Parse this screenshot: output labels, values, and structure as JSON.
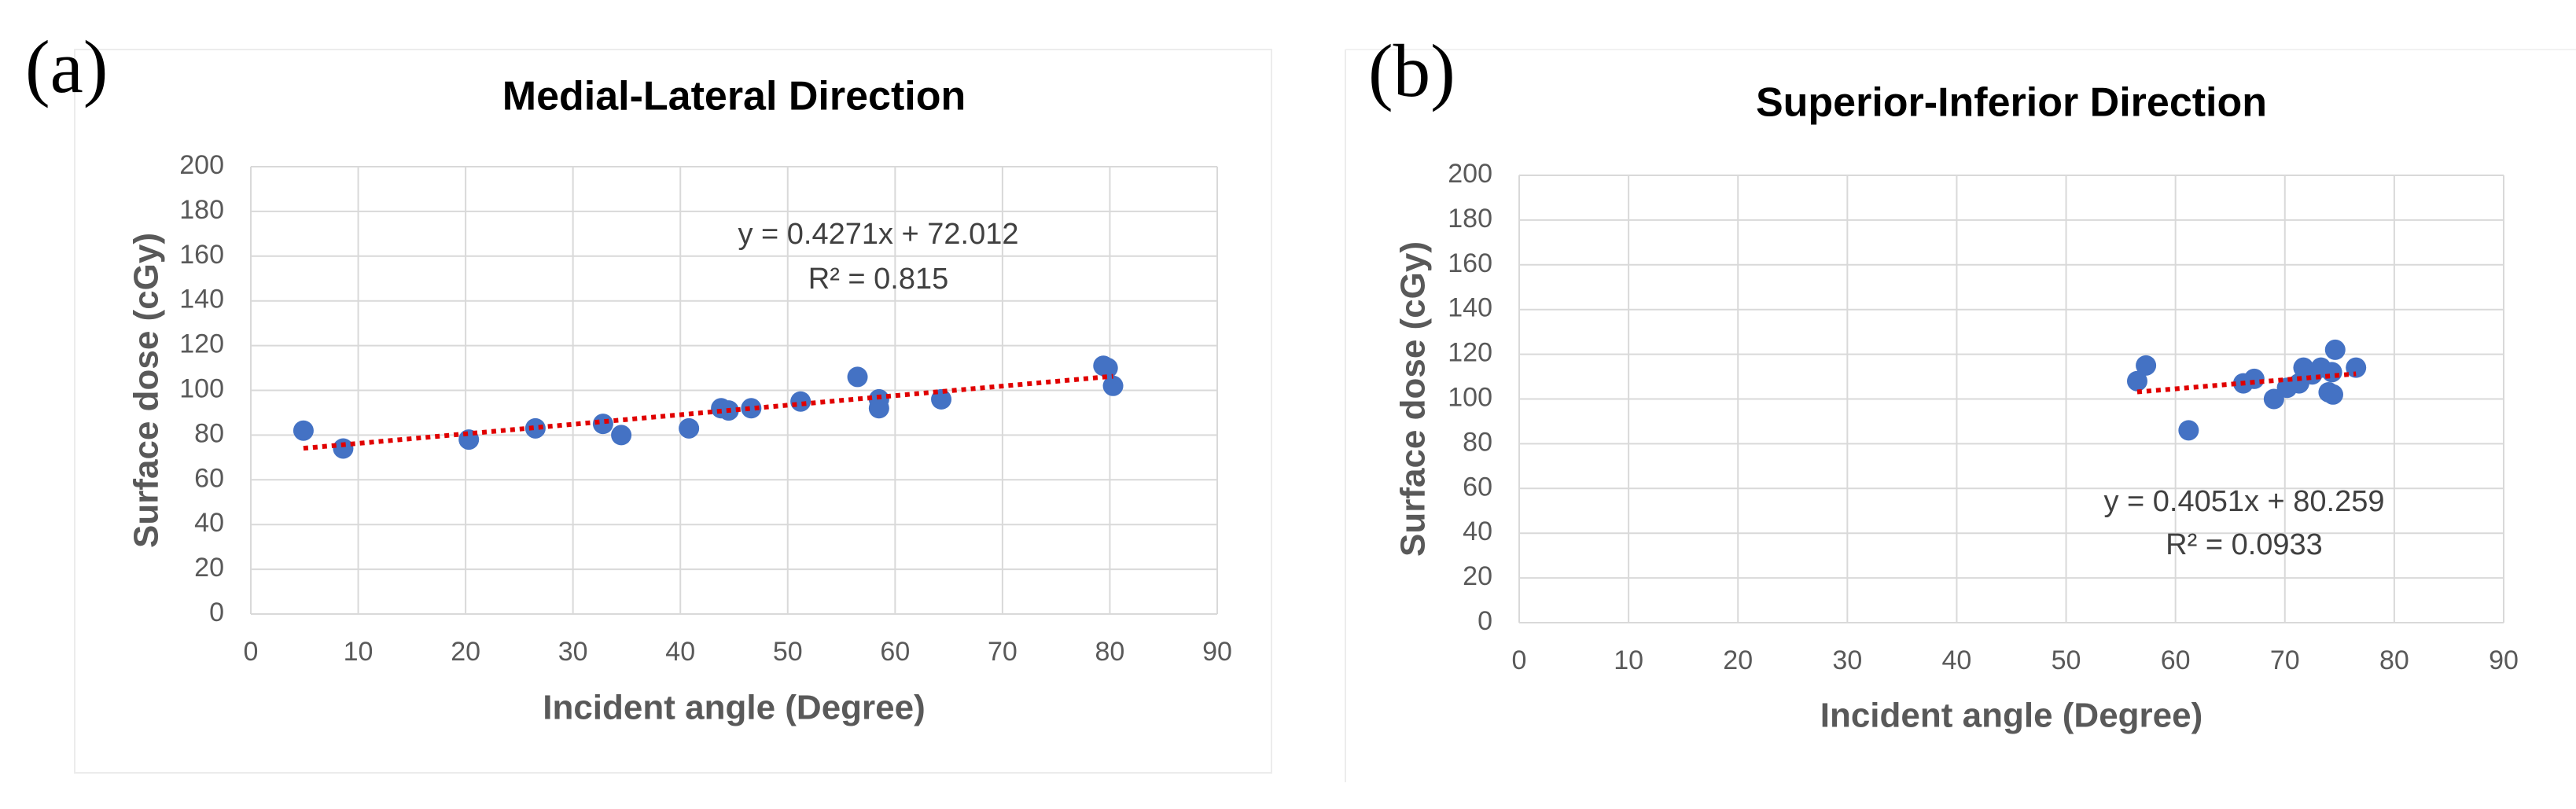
{
  "chart_data": [
    {
      "type": "scatter",
      "panel_label": "(a)",
      "title": "Medial-Lateral Direction",
      "xlabel": "Incident angle (Degree)",
      "ylabel": "Surface dose (cGy)",
      "x": [
        4.9,
        8.6,
        20.3,
        26.5,
        32.8,
        34.5,
        40.8,
        43.8,
        44.5,
        46.6,
        51.2,
        56.5,
        58.5,
        58.5,
        64.3,
        79.4,
        79.8,
        80.3
      ],
      "y": [
        82,
        74,
        78,
        83,
        85,
        80,
        83,
        92,
        91,
        92,
        95,
        106,
        96,
        92,
        96,
        111,
        110,
        102
      ],
      "color": "#4472c4",
      "xlim": [
        0,
        90
      ],
      "ylim": [
        0,
        200
      ],
      "xticks": [
        0,
        10,
        20,
        30,
        40,
        50,
        60,
        70,
        80,
        90
      ],
      "yticks": [
        0,
        20,
        40,
        60,
        80,
        100,
        120,
        140,
        160,
        180,
        200
      ],
      "grid": true,
      "trendline": {
        "color": "#e00000",
        "equation": "y = 0.4271x + 72.012",
        "r_squared": "R² = 0.815"
      }
    },
    {
      "type": "scatter",
      "panel_label": "(b)",
      "title": "Superior-Inferior Direction",
      "xlabel": "Incident angle (Degree)",
      "ylabel": "Surface dose (cGy)",
      "x": [
        56.5,
        57.3,
        61.2,
        66.2,
        67.2,
        69.0,
        70.2,
        71.3,
        71.7,
        72.5,
        73.3,
        74.0,
        74.3,
        74.6,
        74.4,
        76.5
      ],
      "y": [
        108,
        115,
        86,
        107,
        109,
        100,
        105,
        107,
        114,
        111,
        114,
        103,
        112,
        122,
        102,
        114
      ],
      "color": "#4472c4",
      "xlim": [
        0,
        90
      ],
      "ylim": [
        0,
        200
      ],
      "xticks": [
        0,
        10,
        20,
        30,
        40,
        50,
        60,
        70,
        80,
        90
      ],
      "yticks": [
        0,
        20,
        40,
        60,
        80,
        100,
        120,
        140,
        160,
        180,
        200
      ],
      "grid": true,
      "trendline": {
        "color": "#e00000",
        "equation": "y = 0.4051x + 80.259",
        "r_squared": "R² = 0.0933"
      }
    }
  ]
}
